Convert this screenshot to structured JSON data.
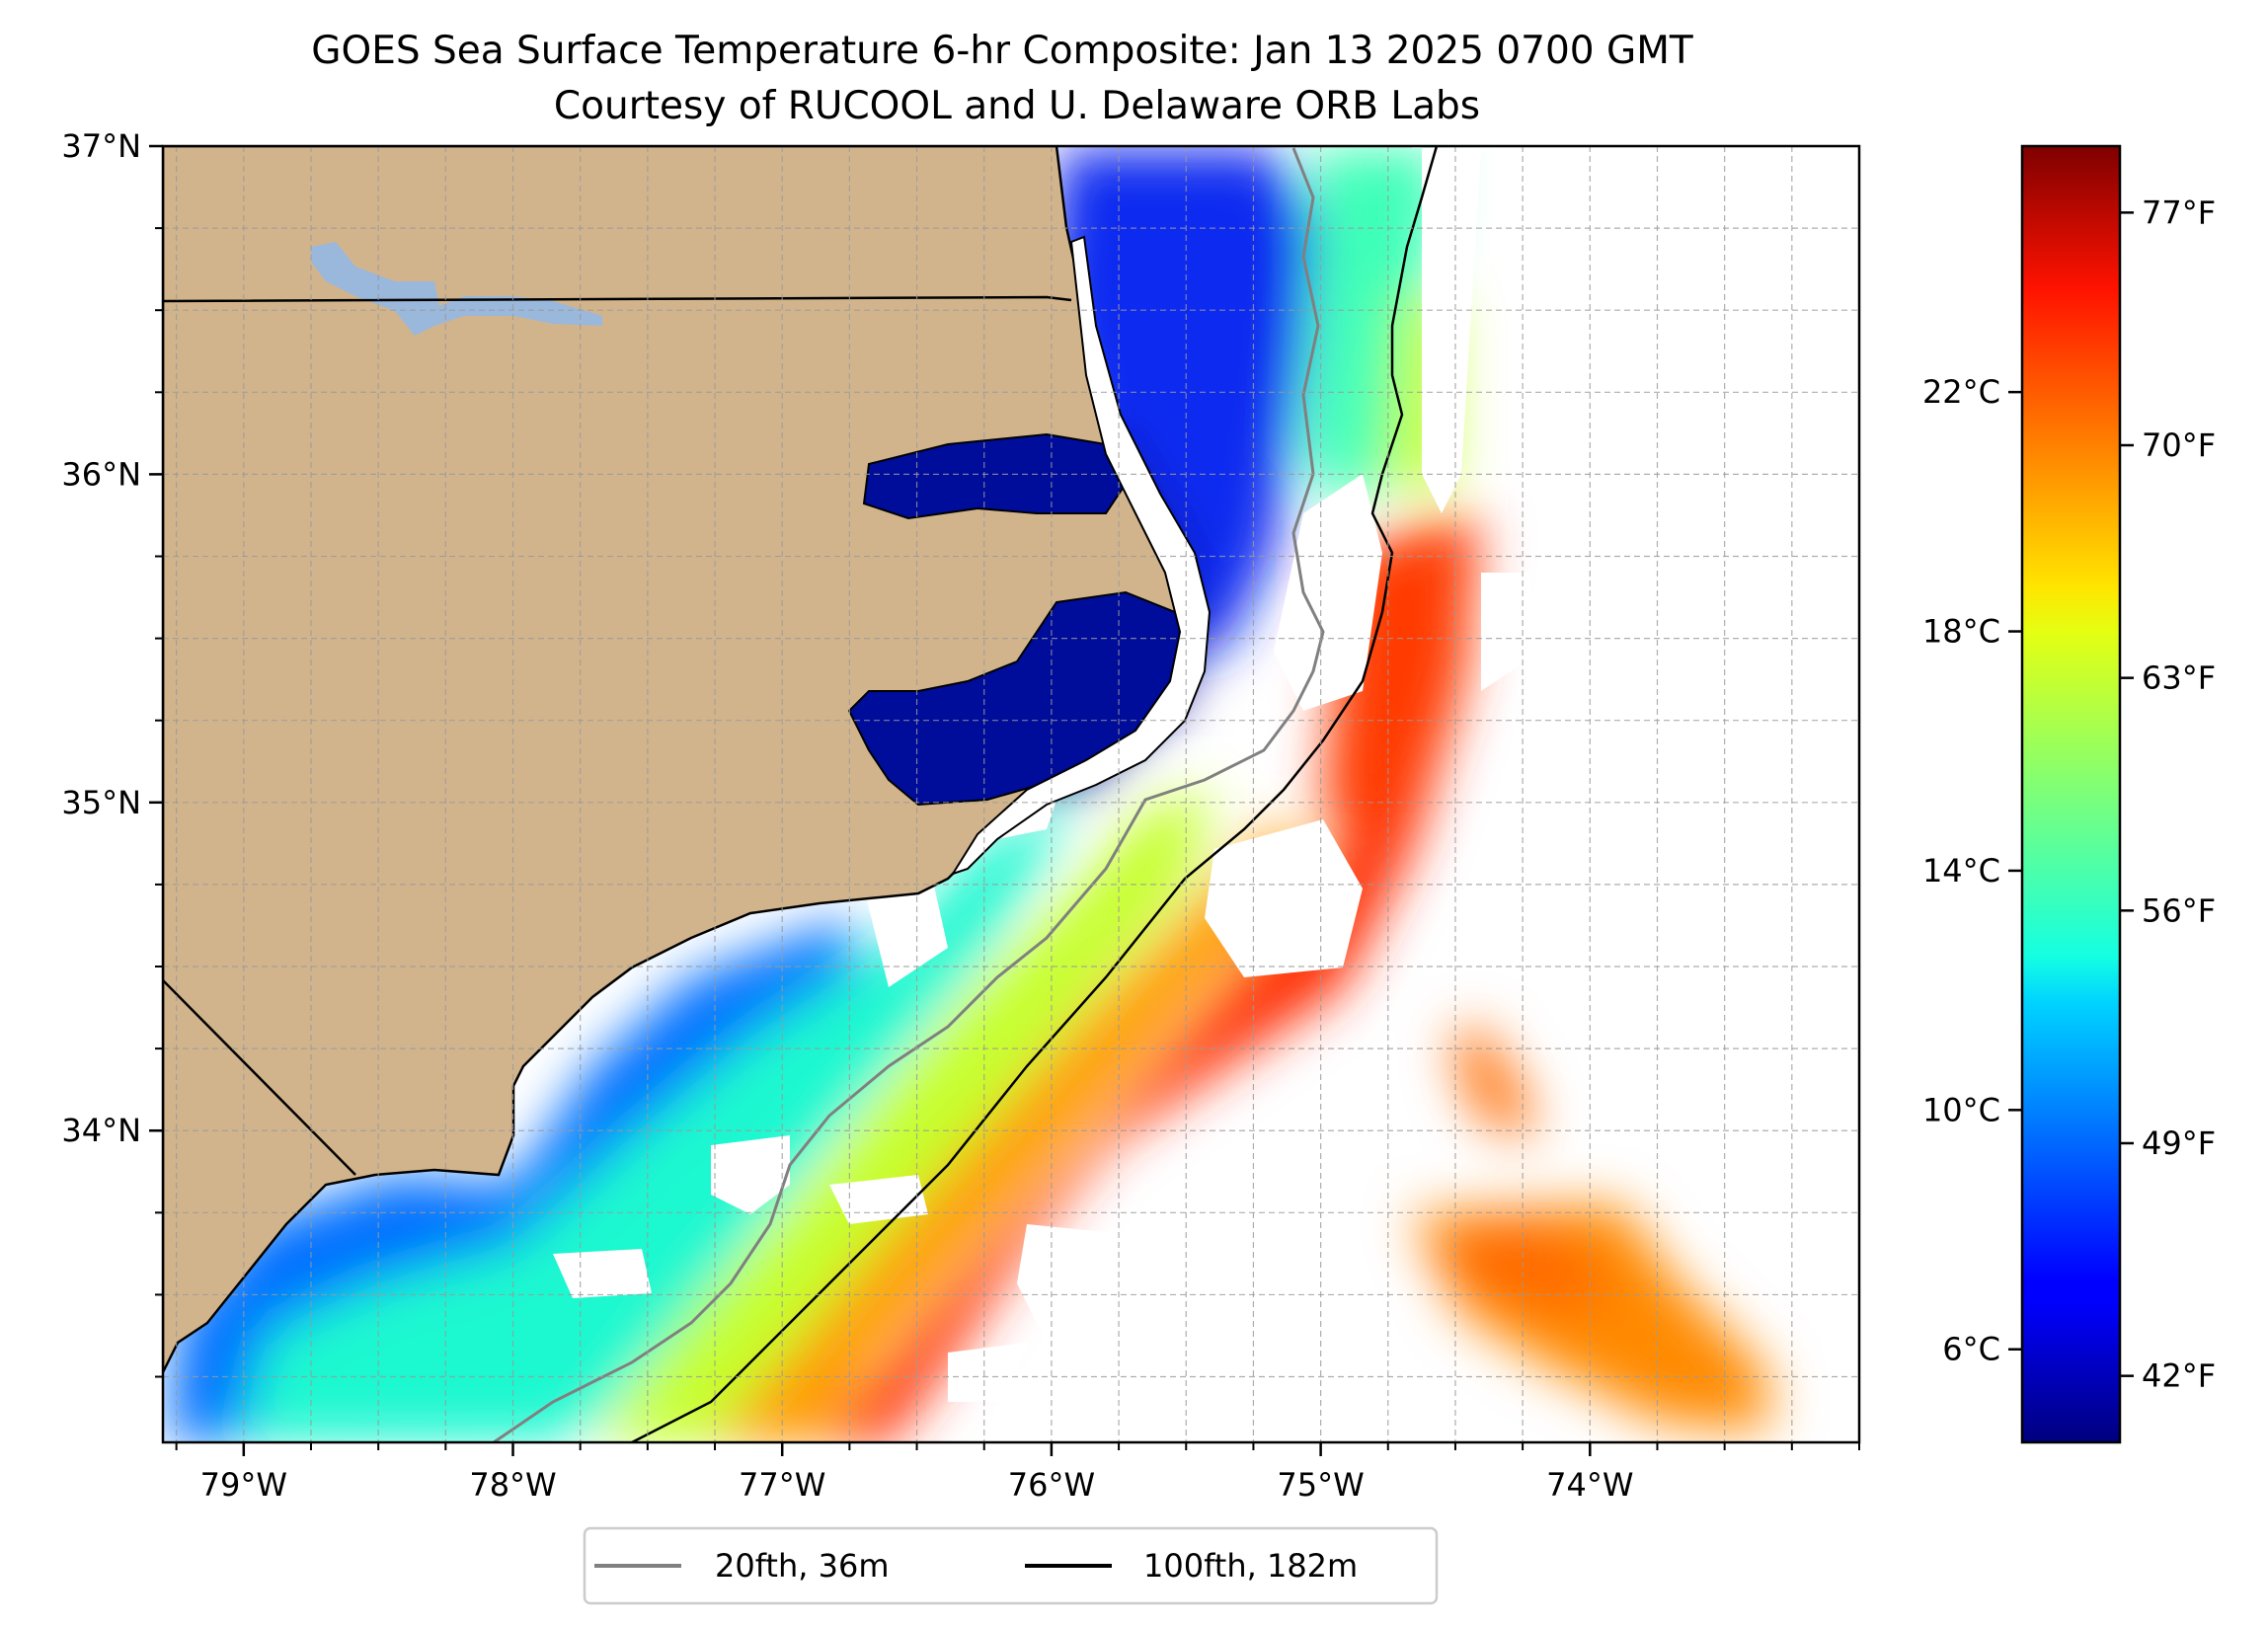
{
  "title": {
    "line1": "GOES Sea Surface Temperature 6-hr Composite: Jan 13 2025 0700 GMT",
    "line2": "Courtesy of RUCOOL and U. Delaware ORB Labs"
  },
  "map": {
    "lon_range": [
      -79.3,
      -73.0
    ],
    "lat_range": [
      33.05,
      37.0
    ],
    "lat_ticks": [
      {
        "value": 37,
        "label": "37°N"
      },
      {
        "value": 36,
        "label": "36°N"
      },
      {
        "value": 35,
        "label": "35°N"
      },
      {
        "value": 34,
        "label": "34°N"
      }
    ],
    "lon_ticks": [
      {
        "value": -79,
        "label": "79°W"
      },
      {
        "value": -78,
        "label": "78°W"
      },
      {
        "value": -77,
        "label": "77°W"
      },
      {
        "value": -76,
        "label": "76°W"
      },
      {
        "value": -75,
        "label": "75°W"
      },
      {
        "value": -74,
        "label": "74°W"
      }
    ],
    "gridlines": true,
    "land_color": "#d2b48c",
    "lake_color": "#9ab7dc",
    "no_data_color": "#ffffff"
  },
  "colorbar": {
    "colormap": "jet",
    "range_f": [
      40,
      79
    ],
    "celsius_ticks": [
      {
        "value": 6,
        "label": "6°C"
      },
      {
        "value": 10,
        "label": "10°C"
      },
      {
        "value": 14,
        "label": "14°C"
      },
      {
        "value": 18,
        "label": "18°C"
      },
      {
        "value": 22,
        "label": "22°C"
      }
    ],
    "fahrenheit_ticks": [
      {
        "value": 42,
        "label": "42°F"
      },
      {
        "value": 49,
        "label": "49°F"
      },
      {
        "value": 56,
        "label": "56°F"
      },
      {
        "value": 63,
        "label": "63°F"
      },
      {
        "value": 70,
        "label": "70°F"
      },
      {
        "value": 77,
        "label": "77°F"
      }
    ]
  },
  "legend": {
    "placement": "bottom-center",
    "entries": [
      {
        "label": "20fth, 36m",
        "color": "#808080"
      },
      {
        "label": "100fth, 182m",
        "color": "#000000"
      }
    ]
  }
}
